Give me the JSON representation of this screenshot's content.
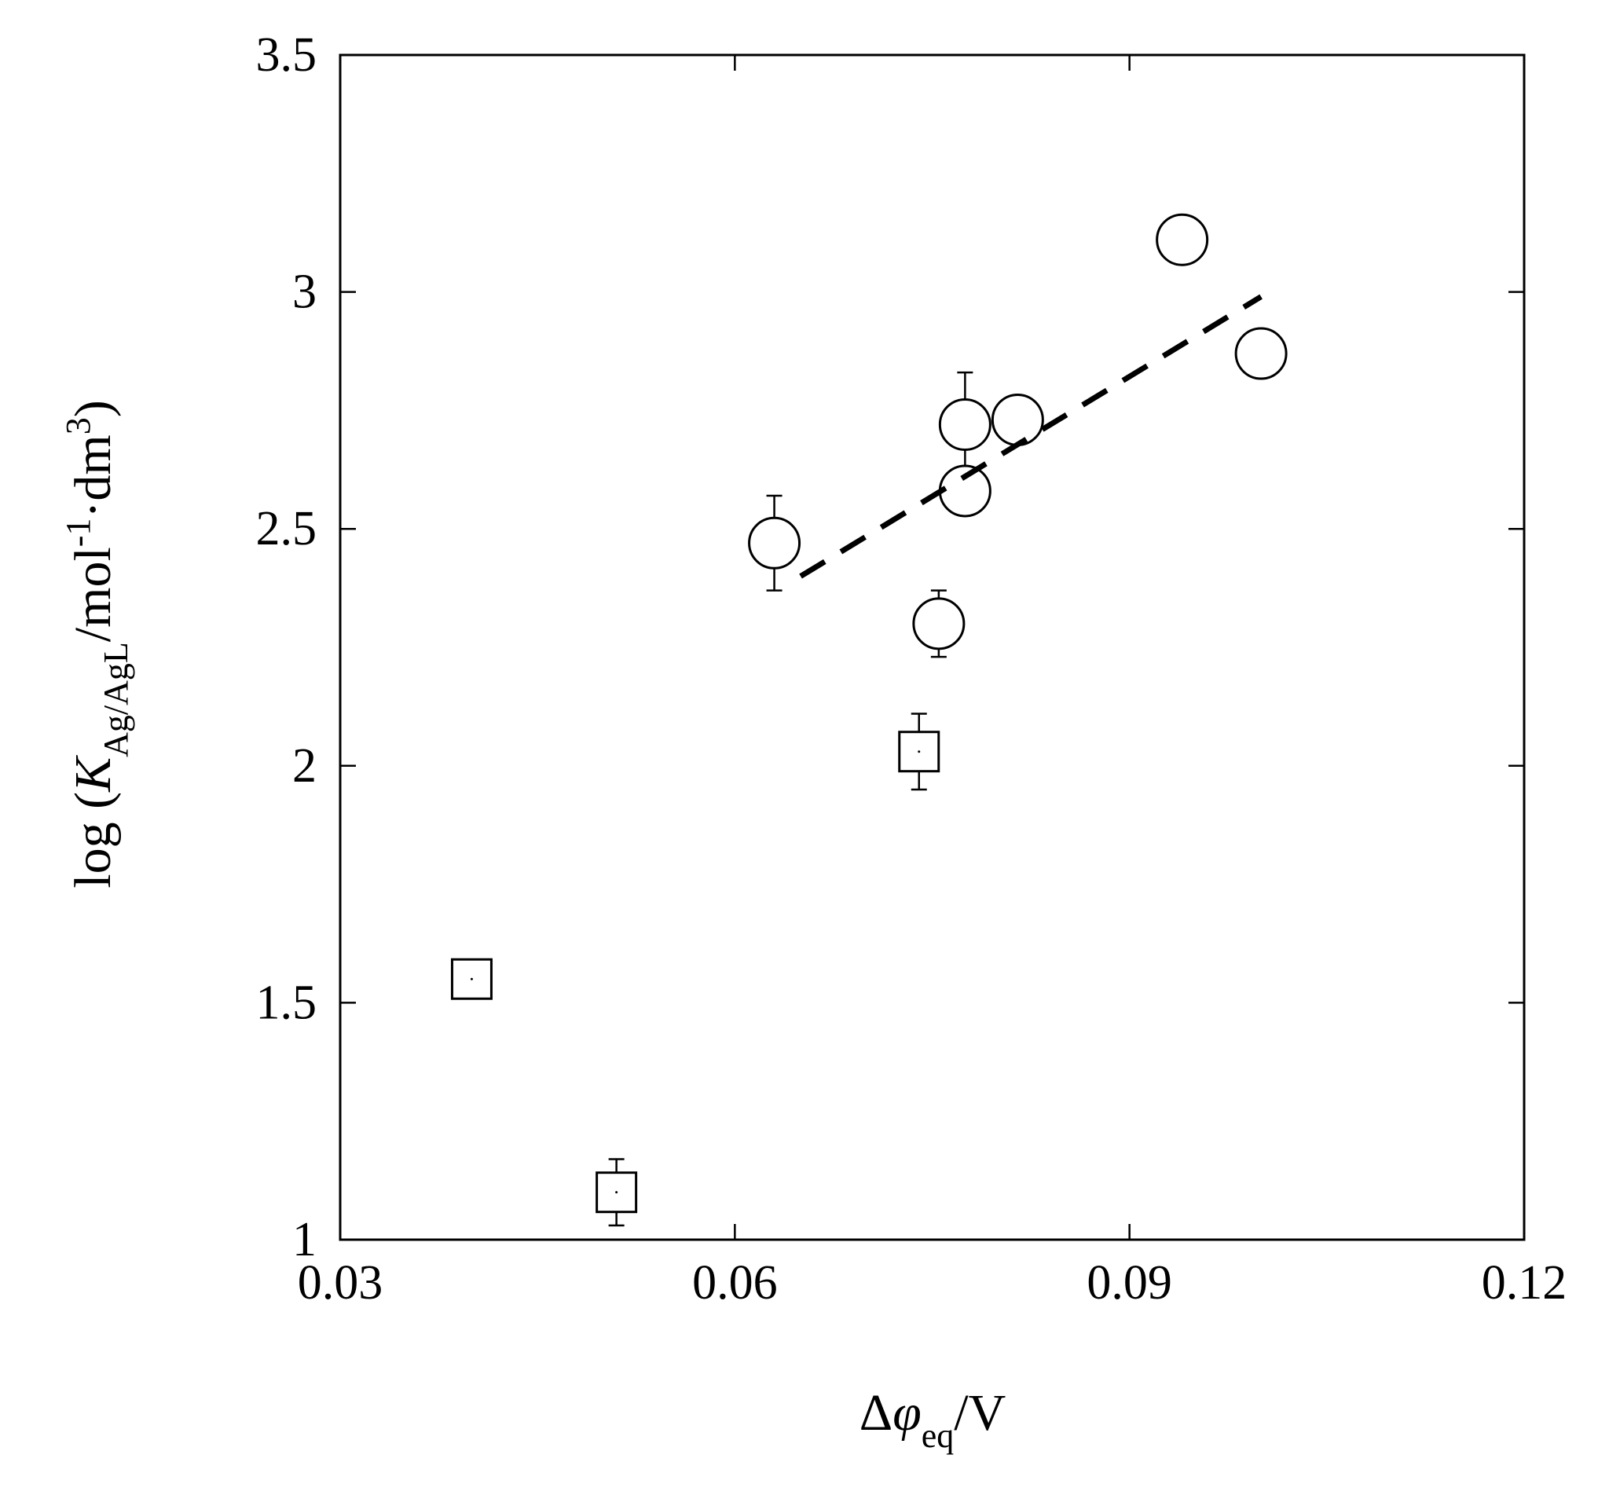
{
  "chart_data": {
    "type": "scatter",
    "xlabel": [
      "Δ",
      "φ",
      "eq",
      "/V"
    ],
    "ylabel": [
      "log (",
      "K",
      "Ag/AgL",
      "/mol",
      "-1",
      "·dm",
      "3",
      ")"
    ],
    "xlim": [
      0.03,
      0.12
    ],
    "xticks": [
      0.03,
      0.06,
      0.09,
      0.12
    ],
    "ylim": [
      1,
      3.5
    ],
    "yticks": [
      1,
      1.5,
      2,
      2.5,
      3,
      3.5
    ],
    "series": [
      {
        "marker": "circle",
        "color": "#000000",
        "x": [
          0.063,
          0.0755,
          0.0775,
          0.0775,
          0.0815,
          0.094,
          0.1
        ],
        "values": [
          2.47,
          2.3,
          2.72,
          2.58,
          2.73,
          3.11,
          2.87
        ],
        "errors": [
          0.1,
          0.07,
          0.11,
          null,
          null,
          null,
          null
        ]
      },
      {
        "marker": "square",
        "color": "#000000",
        "x": [
          0.04,
          0.051,
          0.074
        ],
        "values": [
          1.55,
          1.1,
          2.03
        ],
        "errors": [
          null,
          0.07,
          0.08
        ]
      },
      {
        "marker": "dashed-line",
        "color": "#000000",
        "x": [
          0.065,
          0.1
        ],
        "values": [
          2.4,
          2.99
        ]
      }
    ]
  }
}
